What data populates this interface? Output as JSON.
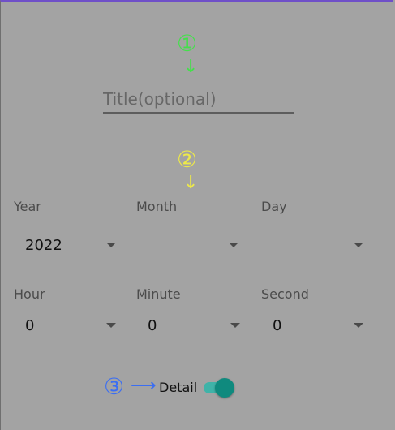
{
  "markers": {
    "one": "①",
    "two": "②",
    "three": "③",
    "arrow_down": "↓",
    "arrow_right": "⟶"
  },
  "colors": {
    "background": "#a3a3a3",
    "marker_one": "#43e04a",
    "marker_two": "#ece84a",
    "marker_three": "#3b6ef2",
    "toggle_thumb": "#0f8a7e",
    "toggle_track": "#3fb3a8"
  },
  "title_field": {
    "placeholder": "Title(optional)",
    "value": ""
  },
  "date": {
    "year": {
      "label": "Year",
      "value": "2022"
    },
    "month": {
      "label": "Month",
      "value": ""
    },
    "day": {
      "label": "Day",
      "value": ""
    }
  },
  "time": {
    "hour": {
      "label": "Hour",
      "value": "0"
    },
    "minute": {
      "label": "Minute",
      "value": "0"
    },
    "second": {
      "label": "Second",
      "value": "0"
    }
  },
  "detail": {
    "label": "Detail",
    "toggle_on": true
  }
}
